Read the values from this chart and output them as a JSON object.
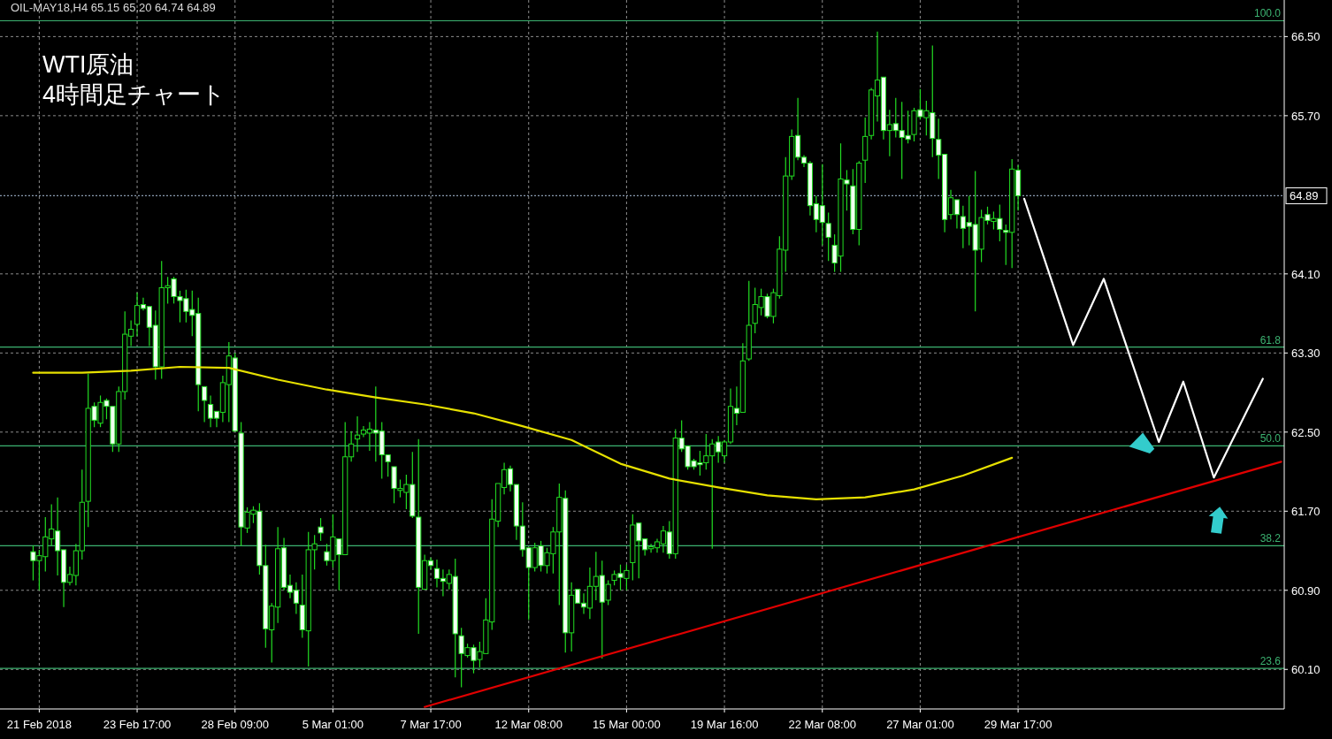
{
  "chart_data": {
    "type": "candlestick",
    "title": "WTI原油",
    "subtitle": "4時間足チャート",
    "annotations": [
      "OIL-MAY18,H4  65.15 65.20 64.74 64.89",
      {
        "text": "100.0",
        "y": 66.66
      },
      {
        "text": "61.8",
        "y": 63.36
      },
      {
        "text": "50.0",
        "y": 62.36
      },
      {
        "text": "38.2",
        "y": 61.35
      },
      {
        "text": "23.6",
        "y": 60.11
      }
    ],
    "categories": [
      null,
      "21 Feb 2018",
      null,
      null,
      null,
      null,
      null,
      null,
      null,
      null,
      null,
      null,
      null,
      null,
      null,
      null,
      null,
      "23 Feb 17:00",
      null,
      null,
      null,
      null,
      null,
      null,
      null,
      null,
      null,
      null,
      null,
      null,
      null,
      null,
      null,
      "28 Feb 09:00",
      null,
      null,
      null,
      null,
      null,
      null,
      null,
      null,
      null,
      null,
      null,
      null,
      null,
      null,
      null,
      "5 Mar 01:00",
      null,
      null,
      null,
      null,
      null,
      null,
      null,
      null,
      null,
      null,
      null,
      null,
      null,
      null,
      null,
      "7 Mar 17:00",
      null,
      null,
      null,
      null,
      null,
      null,
      null,
      null,
      null,
      null,
      null,
      null,
      null,
      null,
      null,
      "12 Mar 08:00",
      null,
      null,
      null,
      null,
      null,
      null,
      null,
      null,
      null,
      null,
      null,
      null,
      null,
      null,
      null,
      "15 Mar 00:00",
      null,
      null,
      null,
      null,
      null,
      null,
      null,
      null,
      null,
      null,
      null,
      null,
      null,
      null,
      null,
      "19 Mar 16:00",
      null,
      null,
      null,
      null,
      null,
      null,
      null,
      null,
      null,
      null,
      null,
      null,
      null,
      null,
      null,
      "22 Mar 08:00",
      null,
      null,
      null,
      null,
      null,
      null,
      null,
      null,
      null,
      null,
      null,
      null,
      null,
      null,
      null,
      "27 Mar 01:00",
      null,
      null,
      null,
      null,
      null,
      null,
      null,
      null,
      null,
      null,
      null,
      null,
      null,
      null,
      null,
      "29 Mar 17:00",
      null,
      null,
      null,
      null,
      null,
      null,
      null,
      null,
      null,
      null,
      null,
      null,
      null,
      null,
      null,
      null,
      null,
      null,
      null,
      null,
      null,
      null,
      null,
      null,
      null,
      null,
      null,
      null,
      null,
      null,
      null,
      null,
      null,
      null,
      null,
      null,
      null,
      null,
      null,
      null,
      null,
      null,
      null
    ],
    "ylim": [
      59.7,
      66.87
    ],
    "yticks": [
      {
        "value": 60.1,
        "label": "60.10"
      },
      {
        "value": 60.9,
        "label": "60.90"
      },
      {
        "value": 61.7,
        "label": "61.70"
      },
      {
        "value": 62.5,
        "label": "62.50"
      },
      {
        "value": 63.3,
        "label": "63.30"
      },
      {
        "value": 64.1,
        "label": "64.10"
      },
      {
        "value": 65.7,
        "label": "65.70"
      },
      {
        "value": 66.5,
        "label": "66.50"
      }
    ],
    "grid": true,
    "ref_lines": [
      {
        "axis": "y",
        "value": 66.66,
        "color": "#3cb371",
        "line_style": "solid"
      },
      {
        "axis": "y",
        "value": 63.36,
        "color": "#3cb371",
        "line_style": "solid"
      },
      {
        "axis": "y",
        "value": 62.36,
        "color": "#3cb371",
        "line_style": "solid"
      },
      {
        "axis": "y",
        "value": 61.35,
        "color": "#3cb371",
        "line_style": "solid"
      },
      {
        "axis": "y",
        "value": 60.11,
        "color": "#3cb371",
        "line_style": "solid"
      },
      {
        "axis": "y",
        "value": 64.89,
        "label": "64.89",
        "color": "#8a9bb0",
        "line_style": "dotted"
      }
    ],
    "series": [
      {
        "color": "#22dd22",
        "ohlc": [
          [
            61.29,
            61.35,
            61.0,
            61.2
          ],
          [
            61.2,
            61.31,
            60.9,
            61.25
          ],
          [
            61.24,
            61.64,
            61.09,
            61.44
          ],
          [
            61.42,
            61.77,
            61.35,
            61.52
          ],
          [
            61.5,
            61.84,
            61.05,
            61.3
          ],
          [
            61.31,
            61.31,
            60.73,
            60.98
          ],
          [
            60.98,
            61.14,
            60.95,
            61.06
          ],
          [
            61.05,
            61.37,
            60.95,
            61.3
          ],
          [
            61.3,
            62.12,
            61.21,
            61.79
          ],
          [
            61.8,
            63.09,
            61.54,
            62.74
          ],
          [
            62.76,
            62.8,
            62.55,
            62.62
          ],
          [
            62.59,
            62.87,
            62.55,
            62.8
          ],
          [
            62.82,
            62.84,
            62.63,
            62.76
          ],
          [
            62.76,
            62.76,
            62.3,
            62.38
          ],
          [
            62.38,
            62.96,
            62.3,
            62.91
          ],
          [
            62.91,
            63.72,
            62.83,
            63.49
          ],
          [
            63.47,
            63.63,
            63.37,
            63.54
          ],
          [
            63.59,
            63.91,
            63.47,
            63.78
          ],
          [
            63.79,
            63.86,
            63.73,
            63.75
          ],
          [
            63.77,
            63.77,
            63.37,
            63.56
          ],
          [
            63.58,
            63.73,
            63.03,
            63.16
          ],
          [
            63.16,
            64.23,
            63.04,
            63.96
          ],
          [
            63.96,
            64.07,
            63.8,
            63.98
          ],
          [
            64.05,
            64.07,
            63.8,
            63.87
          ],
          [
            63.87,
            63.93,
            63.61,
            63.83
          ],
          [
            63.85,
            63.94,
            63.61,
            63.72
          ],
          [
            63.74,
            63.93,
            63.47,
            63.68
          ],
          [
            63.7,
            63.86,
            62.71,
            62.98
          ],
          [
            62.96,
            62.96,
            62.6,
            62.82
          ],
          [
            62.78,
            62.87,
            62.55,
            62.64
          ],
          [
            62.71,
            62.71,
            62.55,
            62.64
          ],
          [
            62.7,
            63.07,
            62.6,
            63.0
          ],
          [
            62.98,
            63.41,
            62.6,
            63.27
          ],
          [
            63.25,
            63.3,
            62.51,
            62.51
          ],
          [
            62.49,
            62.6,
            61.35,
            61.54
          ],
          [
            61.53,
            61.74,
            61.48,
            61.69
          ],
          [
            61.67,
            61.75,
            61.58,
            61.71
          ],
          [
            61.7,
            61.78,
            61.06,
            61.15
          ],
          [
            61.15,
            61.36,
            60.32,
            60.51
          ],
          [
            60.5,
            60.77,
            60.17,
            60.74
          ],
          [
            60.73,
            61.54,
            60.57,
            61.32
          ],
          [
            61.33,
            61.43,
            60.9,
            60.93
          ],
          [
            60.95,
            61.06,
            60.82,
            60.88
          ],
          [
            60.9,
            60.98,
            60.66,
            60.77
          ],
          [
            60.75,
            61.06,
            60.42,
            60.5
          ],
          [
            60.49,
            61.49,
            60.13,
            61.31
          ],
          [
            61.31,
            61.46,
            61.11,
            61.37
          ],
          [
            61.54,
            61.63,
            61.4,
            61.48
          ],
          [
            61.29,
            61.37,
            61.15,
            61.2
          ],
          [
            61.2,
            61.67,
            61.13,
            61.44
          ],
          [
            61.42,
            61.42,
            60.9,
            61.26
          ],
          [
            61.26,
            62.6,
            61.26,
            62.25
          ],
          [
            62.25,
            62.51,
            62.2,
            62.38
          ],
          [
            62.43,
            62.66,
            62.3,
            62.47
          ],
          [
            62.48,
            62.56,
            62.45,
            62.52
          ],
          [
            62.49,
            62.6,
            62.31,
            62.53
          ],
          [
            62.52,
            62.96,
            62.2,
            62.49
          ],
          [
            62.51,
            62.6,
            62.03,
            62.27
          ],
          [
            62.27,
            62.27,
            62.05,
            62.2
          ],
          [
            62.15,
            62.15,
            61.78,
            61.93
          ],
          [
            61.91,
            62.02,
            61.84,
            61.93
          ],
          [
            61.89,
            62.07,
            61.72,
            61.97
          ],
          [
            61.97,
            62.3,
            61.63,
            61.65
          ],
          [
            61.64,
            62.43,
            60.46,
            60.93
          ],
          [
            60.91,
            61.26,
            60.91,
            61.2
          ],
          [
            61.2,
            61.23,
            61.11,
            61.15
          ],
          [
            61.12,
            61.21,
            60.93,
            61.02
          ],
          [
            61.02,
            61.11,
            60.84,
            60.99
          ],
          [
            60.97,
            61.11,
            60.91,
            61.06
          ],
          [
            61.04,
            61.22,
            60.02,
            60.46
          ],
          [
            60.44,
            60.52,
            59.92,
            60.26
          ],
          [
            60.24,
            60.36,
            60.22,
            60.32
          ],
          [
            60.32,
            60.35,
            60.06,
            60.19
          ],
          [
            60.2,
            60.38,
            60.12,
            60.28
          ],
          [
            60.26,
            60.82,
            60.26,
            60.6
          ],
          [
            60.58,
            61.82,
            60.5,
            61.62
          ],
          [
            61.6,
            61.98,
            61.54,
            61.98
          ],
          [
            61.94,
            62.19,
            61.87,
            62.12
          ],
          [
            62.13,
            62.16,
            61.9,
            61.97
          ],
          [
            61.97,
            61.97,
            61.41,
            61.55
          ],
          [
            61.55,
            61.79,
            61.24,
            61.31
          ],
          [
            61.33,
            61.33,
            60.6,
            61.13
          ],
          [
            61.13,
            61.38,
            61.09,
            61.33
          ],
          [
            61.35,
            61.4,
            61.09,
            61.15
          ],
          [
            61.15,
            61.33,
            61.07,
            61.28
          ],
          [
            61.27,
            61.54,
            61.07,
            61.49
          ],
          [
            61.49,
            61.98,
            60.75,
            61.84
          ],
          [
            61.83,
            61.91,
            60.27,
            60.47
          ],
          [
            60.47,
            60.98,
            60.28,
            60.85
          ],
          [
            60.91,
            60.91,
            60.77,
            60.77
          ],
          [
            60.77,
            60.87,
            60.66,
            60.73
          ],
          [
            60.72,
            61.13,
            60.61,
            60.94
          ],
          [
            60.94,
            61.29,
            60.8,
            61.04
          ],
          [
            61.05,
            61.2,
            60.21,
            60.78
          ],
          [
            60.8,
            61.0,
            60.75,
            60.96
          ],
          [
            61.0,
            61.1,
            60.95,
            61.06
          ],
          [
            61.07,
            61.16,
            60.9,
            61.03
          ],
          [
            61.02,
            61.16,
            60.9,
            61.1
          ],
          [
            61.18,
            61.67,
            61.0,
            61.56
          ],
          [
            61.58,
            61.58,
            61.02,
            61.4
          ],
          [
            61.42,
            61.42,
            61.25,
            61.31
          ],
          [
            61.32,
            61.37,
            61.28,
            61.34
          ],
          [
            61.33,
            61.42,
            61.28,
            61.39
          ],
          [
            61.37,
            61.55,
            61.28,
            61.5
          ],
          [
            61.49,
            61.6,
            61.22,
            61.27
          ],
          [
            61.27,
            62.53,
            61.22,
            62.44
          ],
          [
            62.44,
            62.62,
            62.3,
            62.33
          ],
          [
            62.36,
            62.36,
            62.12,
            62.15
          ],
          [
            62.21,
            62.23,
            62.12,
            62.15
          ],
          [
            62.19,
            62.31,
            62.06,
            62.17
          ],
          [
            62.19,
            62.48,
            62.12,
            62.26
          ],
          [
            62.26,
            62.43,
            61.32,
            62.38
          ],
          [
            62.4,
            62.46,
            62.19,
            62.3
          ],
          [
            62.26,
            62.42,
            62.19,
            62.4
          ],
          [
            62.4,
            62.94,
            62.38,
            62.76
          ],
          [
            62.74,
            62.96,
            62.57,
            62.69
          ],
          [
            62.7,
            63.4,
            62.7,
            63.22
          ],
          [
            63.24,
            64.03,
            63.22,
            63.58
          ],
          [
            63.6,
            63.96,
            63.5,
            63.79
          ],
          [
            63.76,
            63.95,
            63.68,
            63.87
          ],
          [
            63.87,
            63.9,
            63.65,
            63.67
          ],
          [
            63.67,
            63.95,
            63.6,
            63.91
          ],
          [
            63.88,
            64.48,
            63.85,
            64.35
          ],
          [
            64.34,
            65.28,
            64.12,
            65.09
          ],
          [
            65.09,
            65.56,
            65.05,
            65.49
          ],
          [
            65.5,
            65.88,
            65.25,
            65.28
          ],
          [
            65.28,
            65.3,
            65.18,
            65.22
          ],
          [
            65.22,
            65.24,
            64.69,
            64.79
          ],
          [
            64.81,
            64.89,
            64.52,
            64.65
          ],
          [
            64.79,
            65.21,
            64.39,
            64.62
          ],
          [
            64.61,
            64.72,
            64.23,
            64.47
          ],
          [
            64.39,
            64.5,
            64.12,
            64.21
          ],
          [
            64.28,
            65.42,
            64.12,
            65.06
          ],
          [
            65.05,
            65.15,
            64.74,
            65.01
          ],
          [
            64.99,
            65.16,
            64.5,
            64.55
          ],
          [
            64.55,
            65.24,
            64.39,
            65.22
          ],
          [
            65.25,
            65.68,
            65.02,
            65.49
          ],
          [
            65.5,
            65.98,
            65.46,
            65.96
          ],
          [
            65.9,
            66.55,
            65.64,
            66.06
          ],
          [
            66.09,
            66.09,
            65.46,
            65.55
          ],
          [
            65.55,
            65.76,
            65.29,
            65.61
          ],
          [
            65.62,
            65.88,
            65.48,
            65.55
          ],
          [
            65.55,
            65.84,
            65.06,
            65.48
          ],
          [
            65.5,
            65.75,
            65.42,
            65.46
          ],
          [
            65.51,
            65.78,
            65.44,
            65.75
          ],
          [
            65.76,
            65.97,
            65.66,
            65.69
          ],
          [
            65.68,
            65.85,
            65.5,
            65.75
          ],
          [
            65.73,
            66.41,
            65.28,
            65.47
          ],
          [
            65.46,
            65.67,
            65.06,
            65.3
          ],
          [
            65.31,
            65.31,
            64.52,
            64.65
          ],
          [
            64.7,
            64.95,
            64.65,
            64.87
          ],
          [
            64.85,
            64.85,
            64.56,
            64.7
          ],
          [
            64.68,
            64.79,
            64.36,
            64.56
          ],
          [
            64.62,
            64.89,
            64.39,
            64.58
          ],
          [
            64.6,
            65.14,
            63.72,
            64.34
          ],
          [
            64.35,
            64.75,
            64.22,
            64.67
          ],
          [
            64.7,
            64.78,
            64.6,
            64.64
          ],
          [
            64.63,
            64.73,
            64.55,
            64.66
          ],
          [
            64.66,
            64.8,
            64.43,
            64.55
          ],
          [
            64.54,
            64.6,
            64.19,
            64.52
          ],
          [
            64.52,
            65.26,
            64.16,
            65.16
          ],
          [
            65.15,
            65.2,
            64.74,
            64.89
          ],
          null,
          null,
          null,
          null,
          null,
          null,
          null,
          null,
          null,
          null,
          null,
          null,
          null,
          null,
          null,
          null,
          null,
          null,
          null,
          null,
          null,
          null,
          null,
          null,
          null,
          null,
          null,
          null,
          null,
          null,
          null,
          null,
          null,
          null,
          null,
          null,
          null,
          null,
          null,
          null,
          null,
          null,
          null
        ]
      },
      {
        "type": "line",
        "color": "#e6e000",
        "values": [
          63.1,
          null,
          null,
          null,
          null,
          null,
          null,
          null,
          63.1,
          null,
          null,
          null,
          null,
          null,
          null,
          null,
          63.12,
          null,
          null,
          null,
          null,
          null,
          null,
          null,
          63.16,
          null,
          null,
          null,
          null,
          null,
          null,
          null,
          63.15,
          null,
          null,
          null,
          null,
          null,
          null,
          null,
          63.03,
          null,
          null,
          null,
          null,
          null,
          null,
          null,
          62.93,
          null,
          null,
          null,
          null,
          null,
          null,
          null,
          62.85,
          null,
          null,
          null,
          null,
          null,
          null,
          null,
          62.78,
          null,
          null,
          null,
          null,
          null,
          null,
          null,
          62.69,
          null,
          null,
          null,
          null,
          null,
          null,
          null,
          62.56,
          null,
          null,
          null,
          null,
          null,
          null,
          null,
          62.42,
          null,
          null,
          null,
          null,
          null,
          null,
          null,
          62.18,
          null,
          null,
          null,
          null,
          null,
          null,
          null,
          62.03,
          null,
          null,
          null,
          null,
          null,
          null,
          null,
          61.94,
          null,
          null,
          null,
          null,
          null,
          null,
          null,
          61.86,
          null,
          null,
          null,
          null,
          null,
          null,
          null,
          61.82,
          null,
          null,
          null,
          null,
          null,
          null,
          null,
          61.84,
          null,
          null,
          null,
          null,
          null,
          null,
          null,
          61.92,
          null,
          null,
          null,
          null,
          null,
          null,
          null,
          62.06,
          null,
          null,
          null,
          null,
          null,
          null,
          null,
          62.24,
          null,
          null,
          null,
          null,
          null,
          null,
          null,
          null,
          null,
          null,
          null,
          null,
          null,
          null,
          null,
          null,
          null,
          null,
          null,
          null,
          null,
          null,
          null,
          null,
          null,
          null,
          null,
          null,
          null,
          null,
          null,
          null,
          null,
          null,
          null,
          null,
          null,
          null,
          null,
          null,
          null,
          null,
          null,
          null
        ]
      },
      {
        "type": "line",
        "color": "#e00000",
        "values": [
          null,
          null,
          null,
          null,
          null,
          null,
          null,
          null,
          null,
          null,
          null,
          null,
          null,
          null,
          null,
          null,
          null,
          null,
          null,
          null,
          null,
          null,
          null,
          null,
          null,
          null,
          null,
          null,
          null,
          null,
          null,
          null,
          null,
          null,
          null,
          null,
          null,
          null,
          null,
          null,
          null,
          null,
          null,
          null,
          null,
          null,
          null,
          null,
          null,
          null,
          null,
          null,
          null,
          null,
          null,
          null,
          null,
          null,
          null,
          null,
          null,
          null,
          null,
          null,
          59.72,
          null,
          null,
          null,
          null,
          null,
          null,
          null,
          null,
          null,
          null,
          null,
          null,
          null,
          null,
          null,
          null,
          null,
          null,
          null,
          null,
          null,
          null,
          null,
          null,
          null,
          null,
          null,
          null,
          null,
          null,
          null,
          null,
          null,
          null,
          null,
          null,
          null,
          null,
          null,
          null,
          null,
          null,
          null,
          null,
          null,
          null,
          null,
          null,
          null,
          null,
          null,
          null,
          null,
          null,
          null,
          null,
          null,
          null,
          null,
          null,
          null,
          null,
          null,
          null,
          null,
          null,
          null,
          null,
          null,
          null,
          null,
          null,
          null,
          null,
          null,
          null,
          null,
          null,
          null,
          null,
          null,
          null,
          null,
          null,
          null,
          null,
          null,
          null,
          null,
          null,
          null,
          null,
          null,
          null,
          null,
          null,
          null,
          null,
          null,
          null,
          null,
          null,
          null,
          null,
          null,
          null,
          null,
          null,
          null,
          null,
          null,
          null,
          null,
          null,
          null,
          null,
          null,
          null,
          null,
          null,
          null,
          null,
          null,
          null,
          null,
          null,
          null,
          null,
          null,
          null,
          null,
          null,
          null,
          null,
          null,
          null,
          null,
          null,
          null,
          62.2
        ]
      },
      {
        "type": "line",
        "color": "#ffffff",
        "values": [
          null,
          null,
          null,
          null,
          null,
          null,
          null,
          null,
          null,
          null,
          null,
          null,
          null,
          null,
          null,
          null,
          null,
          null,
          null,
          null,
          null,
          null,
          null,
          null,
          null,
          null,
          null,
          null,
          null,
          null,
          null,
          null,
          null,
          null,
          null,
          null,
          null,
          null,
          null,
          null,
          null,
          null,
          null,
          null,
          null,
          null,
          null,
          null,
          null,
          null,
          null,
          null,
          null,
          null,
          null,
          null,
          null,
          null,
          null,
          null,
          null,
          null,
          null,
          null,
          null,
          null,
          null,
          null,
          null,
          null,
          null,
          null,
          null,
          null,
          null,
          null,
          null,
          null,
          null,
          null,
          null,
          null,
          null,
          null,
          null,
          null,
          null,
          null,
          null,
          null,
          null,
          null,
          null,
          null,
          null,
          null,
          null,
          null,
          null,
          null,
          null,
          null,
          null,
          null,
          null,
          null,
          null,
          null,
          null,
          null,
          null,
          null,
          null,
          null,
          null,
          null,
          null,
          null,
          null,
          null,
          null,
          null,
          null,
          null,
          null,
          null,
          null,
          null,
          null,
          null,
          null,
          null,
          null,
          null,
          null,
          null,
          null,
          null,
          null,
          null,
          null,
          null,
          null,
          null,
          null,
          null,
          null,
          null,
          null,
          null,
          null,
          null,
          null,
          null,
          null,
          null,
          null,
          null,
          null,
          null,
          null,
          null,
          64.86,
          null,
          null,
          null,
          null,
          null,
          null,
          null,
          63.38,
          null,
          null,
          null,
          null,
          64.05,
          null,
          null,
          null,
          null,
          null,
          null,
          null,
          null,
          62.4,
          null,
          null,
          null,
          63.01,
          null,
          null,
          null,
          null,
          62.04,
          null,
          null,
          null,
          null,
          null,
          null,
          null,
          63.04,
          null,
          null,
          null
        ]
      }
    ]
  }
}
